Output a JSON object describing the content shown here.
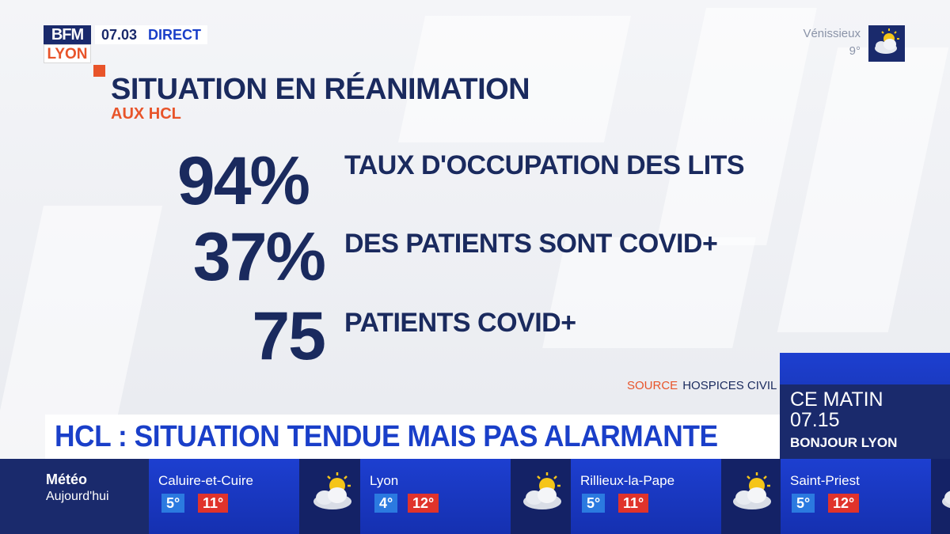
{
  "channel": {
    "logo_top": "BFM",
    "logo_bottom": "LYON",
    "time": "07.03",
    "live": "DIRECT"
  },
  "weather_top": {
    "city": "Vénissieux",
    "temp": "9°",
    "icon": "sun-cloud-icon"
  },
  "card": {
    "title": "SITUATION EN RÉANIMATION",
    "subtitle": "AUX HCL",
    "stats": [
      {
        "value": "94%",
        "label": "TAUX D'OCCUPATION DES LITS"
      },
      {
        "value": "37%",
        "label": "DES PATIENTS SONT COVID+"
      },
      {
        "value": "75",
        "label": "PATIENTS COVID+"
      }
    ],
    "source_key": "SOURCE",
    "source_value": "HOSPICES CIVIL"
  },
  "headline": "HCL : SITUATION TENDUE MAIS PAS ALARMANTE",
  "program": {
    "when": "CE MATIN",
    "time": "07.15",
    "show": "BONJOUR LYON"
  },
  "ticker": {
    "title": "Météo",
    "subtitle": "Aujourd'hui",
    "cities": [
      {
        "name": "Caluire-et-Cuire",
        "min": "5°",
        "max": "11°",
        "icon": "sun-cloud-icon"
      },
      {
        "name": "Lyon",
        "min": "4°",
        "max": "12°",
        "icon": "sun-cloud-icon"
      },
      {
        "name": "Rillieux-la-Pape",
        "min": "5°",
        "max": "11°",
        "icon": "sun-cloud-icon"
      },
      {
        "name": "Saint-Priest",
        "min": "5°",
        "max": "12°",
        "icon": "sun-cloud-icon"
      }
    ]
  },
  "colors": {
    "navy": "#1a2a5e",
    "orange": "#e8542a",
    "blue": "#1a3fc9",
    "min_temp": "#2b7ae0",
    "max_temp": "#e0332b"
  }
}
